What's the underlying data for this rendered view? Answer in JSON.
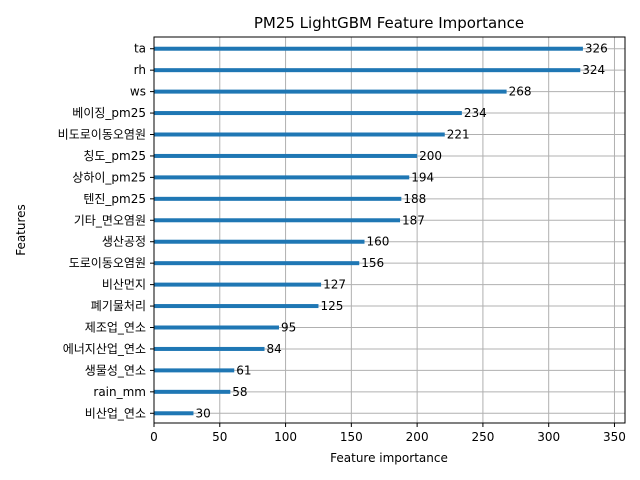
{
  "chart_data": {
    "type": "bar",
    "orientation": "horizontal",
    "title": "PM25 LightGBM Feature Importance",
    "xlabel": "Feature importance",
    "ylabel": "Features",
    "xlim": [
      0,
      358
    ],
    "xticks": [
      0,
      50,
      100,
      150,
      200,
      250,
      300,
      350
    ],
    "grid": true,
    "bar_color": "#1f77b4",
    "categories": [
      "ta",
      "rh",
      "ws",
      "베이징_pm25",
      "비도로이동오염원",
      "칭도_pm25",
      "상하이_pm25",
      "텐진_pm25",
      "기타_면오염원",
      "생산공정",
      "도로이동오염원",
      "비산먼지",
      "폐기물처리",
      "제조업_연소",
      "에너지산업_연소",
      "생물성_연소",
      "rain_mm",
      "비산업_연소"
    ],
    "values": [
      326,
      324,
      268,
      234,
      221,
      200,
      194,
      188,
      187,
      160,
      156,
      127,
      125,
      95,
      84,
      61,
      58,
      30
    ]
  }
}
